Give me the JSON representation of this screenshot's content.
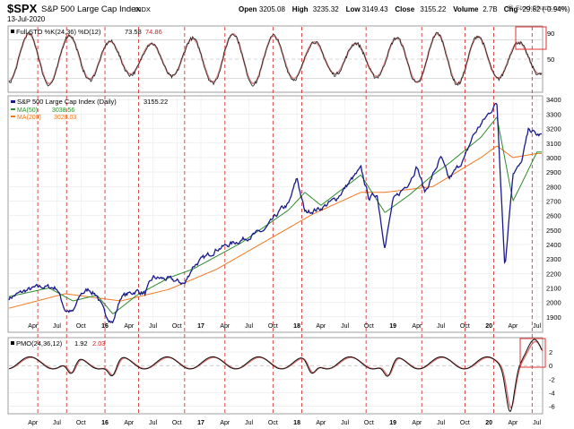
{
  "header": {
    "symbol": "$SPX",
    "name": "S&P 500 Large Cap Index",
    "exchange": "INDX",
    "date": "13-Jul-2020",
    "watermark": "@ StockCharts.com",
    "ohlc": [
      {
        "label": "Open",
        "value": "3205.08"
      },
      {
        "label": "High",
        "value": "3235.32"
      },
      {
        "label": "Low",
        "value": "3149.43"
      },
      {
        "label": "Close",
        "value": "3155.22"
      },
      {
        "label": "Volume",
        "value": "2.7B"
      },
      {
        "label": "Chg",
        "value": "-29.82 (-0.94%)",
        "arrow": "▼"
      }
    ]
  },
  "x_axis_labels": [
    "Apr",
    "Jul",
    "Oct",
    "16",
    "Apr",
    "Jul",
    "Oct",
    "17",
    "Apr",
    "Jul",
    "Oct",
    "18",
    "Apr",
    "Jul",
    "Oct",
    "19",
    "Apr",
    "Jul",
    "Oct",
    "20",
    "Apr",
    "Jul"
  ],
  "chart_data": [
    {
      "type": "line",
      "panel": "stochastic",
      "legend": {
        "name": "Full STO %K(24,36) %D(12)",
        "k_value": "73.58",
        "d_value": "74.86"
      },
      "y_ticks": [
        90,
        50
      ],
      "ylim": [
        0,
        100
      ],
      "reference_lines": [
        80,
        20
      ]
    },
    {
      "type": "line",
      "panel": "price",
      "series": [
        {
          "name": "S&P 500 Large Cap Index (Daily)",
          "last": "3155.22",
          "color": "#1a1a8c"
        },
        {
          "name": "MA(50)",
          "last": "3038.56",
          "color": "#2e8b2e"
        },
        {
          "name": "MA(200)",
          "last": "3028.03",
          "color": "#f07820"
        }
      ],
      "y_ticks": [
        3400,
        3300,
        3200,
        3100,
        3000,
        2900,
        2800,
        2700,
        2600,
        2500,
        2400,
        2300,
        2200,
        2100,
        2000,
        1900
      ],
      "ylim": [
        1800,
        3420
      ],
      "x_range": [
        "2015-01",
        "2020-07"
      ],
      "points": [
        [
          "2015-01",
          2030
        ],
        [
          "2015-03",
          2080
        ],
        [
          "2015-05",
          2110
        ],
        [
          "2015-07",
          2100
        ],
        [
          "2015-08",
          1950
        ],
        [
          "2015-09",
          1930
        ],
        [
          "2015-10",
          2060
        ],
        [
          "2015-11",
          2090
        ],
        [
          "2015-12",
          2050
        ],
        [
          "2016-01",
          1920
        ],
        [
          "2016-02",
          1860
        ],
        [
          "2016-03",
          2040
        ],
        [
          "2016-05",
          2080
        ],
        [
          "2016-06",
          2060
        ],
        [
          "2016-07",
          2170
        ],
        [
          "2016-09",
          2160
        ],
        [
          "2016-11",
          2130
        ],
        [
          "2016-12",
          2250
        ],
        [
          "2017-03",
          2370
        ],
        [
          "2017-06",
          2430
        ],
        [
          "2017-09",
          2500
        ],
        [
          "2017-11",
          2640
        ],
        [
          "2017-12",
          2680
        ],
        [
          "2018-01",
          2860
        ],
        [
          "2018-02",
          2620
        ],
        [
          "2018-04",
          2650
        ],
        [
          "2018-06",
          2720
        ],
        [
          "2018-08",
          2860
        ],
        [
          "2018-09",
          2920
        ],
        [
          "2018-10",
          2720
        ],
        [
          "2018-11",
          2750
        ],
        [
          "2018-12",
          2380
        ],
        [
          "2019-01",
          2700
        ],
        [
          "2019-03",
          2830
        ],
        [
          "2019-04",
          2940
        ],
        [
          "2019-05",
          2760
        ],
        [
          "2019-07",
          3000
        ],
        [
          "2019-08",
          2850
        ],
        [
          "2019-10",
          3000
        ],
        [
          "2019-11",
          3150
        ],
        [
          "2019-12",
          3230
        ],
        [
          "2020-02",
          3380
        ],
        [
          "2020-03",
          2240
        ],
        [
          "2020-04",
          2900
        ],
        [
          "2020-05",
          2950
        ],
        [
          "2020-06",
          3200
        ],
        [
          "2020-07",
          3155
        ]
      ],
      "ma50": [
        [
          "2015-01",
          2040
        ],
        [
          "2015-06",
          2100
        ],
        [
          "2015-09",
          2010
        ],
        [
          "2015-12",
          2050
        ],
        [
          "2016-02",
          1920
        ],
        [
          "2016-05",
          2050
        ],
        [
          "2016-09",
          2170
        ],
        [
          "2016-12",
          2230
        ],
        [
          "2017-06",
          2410
        ],
        [
          "2017-12",
          2640
        ],
        [
          "2018-02",
          2760
        ],
        [
          "2018-04",
          2670
        ],
        [
          "2018-09",
          2880
        ],
        [
          "2018-12",
          2620
        ],
        [
          "2019-03",
          2740
        ],
        [
          "2019-06",
          2880
        ],
        [
          "2019-08",
          2960
        ],
        [
          "2019-12",
          3140
        ],
        [
          "2020-02",
          3280
        ],
        [
          "2020-04",
          2700
        ],
        [
          "2020-05",
          2810
        ],
        [
          "2020-07",
          3038
        ]
      ],
      "ma200": [
        [
          "2015-01",
          1960
        ],
        [
          "2015-08",
          2060
        ],
        [
          "2016-03",
          2010
        ],
        [
          "2016-09",
          2090
        ],
        [
          "2017-03",
          2230
        ],
        [
          "2017-09",
          2420
        ],
        [
          "2018-03",
          2610
        ],
        [
          "2018-09",
          2760
        ],
        [
          "2018-12",
          2760
        ],
        [
          "2019-06",
          2800
        ],
        [
          "2019-12",
          3000
        ],
        [
          "2020-02",
          3080
        ],
        [
          "2020-04",
          3000
        ],
        [
          "2020-07",
          3028
        ]
      ]
    },
    {
      "type": "line",
      "panel": "pmo",
      "legend": {
        "name": "PMO(24,36,12)",
        "value": "1.92",
        "signal": "2.03"
      },
      "y_ticks": [
        2,
        0,
        -2,
        -4,
        -6
      ],
      "ylim": [
        -7,
        4
      ]
    }
  ]
}
